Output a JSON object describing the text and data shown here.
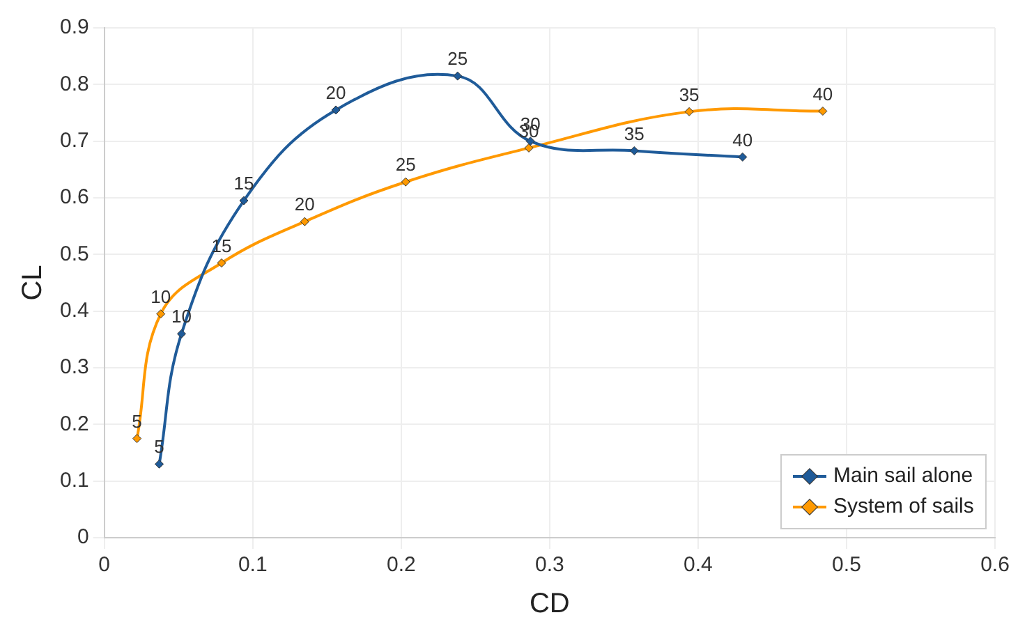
{
  "chart_data": {
    "type": "line",
    "xlabel": "CD",
    "ylabel": "CL",
    "xlim": [
      0,
      0.6
    ],
    "xticks": [
      0,
      0.1,
      0.2,
      0.3,
      0.4,
      0.5,
      0.6
    ],
    "ylim": [
      0,
      0.9
    ],
    "yticks": [
      0,
      0.1,
      0.2,
      0.3,
      0.4,
      0.5,
      0.6,
      0.7,
      0.8,
      0.9
    ],
    "grid": true,
    "legend": "bottom right",
    "marker": "diamond",
    "line_style": "solid",
    "series": [
      {
        "name": "Main sail alone",
        "color": "#1f5b99",
        "x": [
          0.037,
          0.052,
          0.094,
          0.156,
          0.238,
          0.287,
          0.357,
          0.43
        ],
        "values": [
          0.13,
          0.36,
          0.595,
          0.755,
          0.815,
          0.7,
          0.683,
          0.672
        ]
      },
      {
        "name": "System of sails",
        "color": "#ff9900",
        "x": [
          0.022,
          0.038,
          0.079,
          0.135,
          0.203,
          0.286,
          0.394,
          0.484
        ],
        "values": [
          0.175,
          0.395,
          0.485,
          0.558,
          0.628,
          0.688,
          0.752,
          0.753
        ]
      }
    ],
    "annotations": [
      {
        "text": "5",
        "x": 0.037,
        "y": 0.13
      },
      {
        "text": "10",
        "x": 0.052,
        "y": 0.36
      },
      {
        "text": "15",
        "x": 0.094,
        "y": 0.595
      },
      {
        "text": "20",
        "x": 0.156,
        "y": 0.755
      },
      {
        "text": "25",
        "x": 0.238,
        "y": 0.815
      },
      {
        "text": "30",
        "x": 0.287,
        "y": 0.7
      },
      {
        "text": "35",
        "x": 0.357,
        "y": 0.683
      },
      {
        "text": "40",
        "x": 0.43,
        "y": 0.672
      },
      {
        "text": "5",
        "x": 0.022,
        "y": 0.175
      },
      {
        "text": "10",
        "x": 0.038,
        "y": 0.395
      },
      {
        "text": "15",
        "x": 0.079,
        "y": 0.485
      },
      {
        "text": "20",
        "x": 0.135,
        "y": 0.558
      },
      {
        "text": "25",
        "x": 0.203,
        "y": 0.628
      },
      {
        "text": "30",
        "x": 0.286,
        "y": 0.688
      },
      {
        "text": "35",
        "x": 0.394,
        "y": 0.752
      },
      {
        "text": "40",
        "x": 0.484,
        "y": 0.753
      }
    ]
  }
}
